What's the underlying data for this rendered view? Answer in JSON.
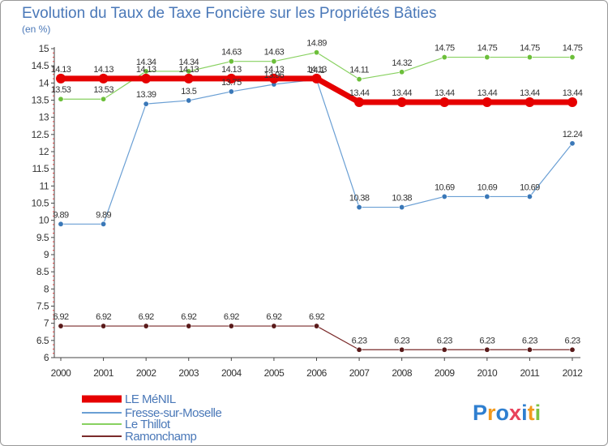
{
  "chart_data": {
    "type": "line",
    "title": "Evolution du Taux de Taxe Foncière sur les Propriétés Bâties",
    "subtitle": "(en %)",
    "x": [
      "2000",
      "2001",
      "2002",
      "2003",
      "2004",
      "2005",
      "2006",
      "2007",
      "2008",
      "2009",
      "2010",
      "2011",
      "2012"
    ],
    "ylim": [
      6,
      15
    ],
    "yticks": [
      "6",
      "6.5",
      "7",
      "7.5",
      "8",
      "8.5",
      "9",
      "9.5",
      "10",
      "10.5",
      "11",
      "11.5",
      "12",
      "12.5",
      "13",
      "13.5",
      "14",
      "14.5",
      "15"
    ],
    "grid": false,
    "legend_position": "bottom-left",
    "series": [
      {
        "name": "LE MéNIL",
        "color": "#e60000",
        "values": [
          14.13,
          14.13,
          14.13,
          14.13,
          14.13,
          14.13,
          14.13,
          13.44,
          13.44,
          13.44,
          13.44,
          13.44,
          13.44
        ],
        "labels": [
          "14.13",
          "14.13",
          "14.13",
          "14.13",
          "14.13",
          "14.13",
          "14.13",
          "13.44",
          "13.44",
          "13.44",
          "13.44",
          "13.44",
          "13.44"
        ]
      },
      {
        "name": "Fresse-sur-Moselle",
        "color": "#6a9fd4",
        "values": [
          9.89,
          9.89,
          13.39,
          13.49,
          13.75,
          13.96,
          14.1,
          10.38,
          10.38,
          10.69,
          10.69,
          10.69,
          12.24
        ],
        "labels": [
          "9.89",
          "9.89",
          "13.39",
          "13.5",
          "13.75",
          "13.96",
          "14.1",
          "10.38",
          "10.38",
          "10.69",
          "10.69",
          "10.69",
          "12.24"
        ]
      },
      {
        "name": "Le Thillot",
        "color": "#88d160",
        "values": [
          13.53,
          13.53,
          14.34,
          14.34,
          14.63,
          14.63,
          14.89,
          14.11,
          14.32,
          14.75,
          14.75,
          14.75,
          14.75
        ],
        "labels": [
          "13.53",
          "13.53",
          "14.34",
          "14.34",
          "14.63",
          "14.63",
          "14.89",
          "14.11",
          "14.32",
          "14.75",
          "14.75",
          "14.75",
          "14.75"
        ]
      },
      {
        "name": "Ramonchamp",
        "color": "#7a2a2a",
        "values": [
          6.92,
          6.92,
          6.92,
          6.92,
          6.92,
          6.92,
          6.92,
          6.23,
          6.23,
          6.23,
          6.23,
          6.23,
          6.23
        ],
        "labels": [
          "6.92",
          "6.92",
          "6.92",
          "6.92",
          "6.92",
          "6.92",
          "6.92",
          "6.23",
          "6.23",
          "6.23",
          "6.23",
          "6.23",
          "6.23"
        ]
      }
    ]
  },
  "logo": {
    "text": "Proxiti",
    "letters": [
      "P",
      "r",
      "o",
      "x",
      "i",
      "t",
      "i"
    ],
    "colors": [
      "#2f7fd0",
      "#f29a1e",
      "#2f7fd0",
      "#e8425c",
      "#2f7fd0",
      "#f29a1e",
      "#7dc242"
    ]
  }
}
